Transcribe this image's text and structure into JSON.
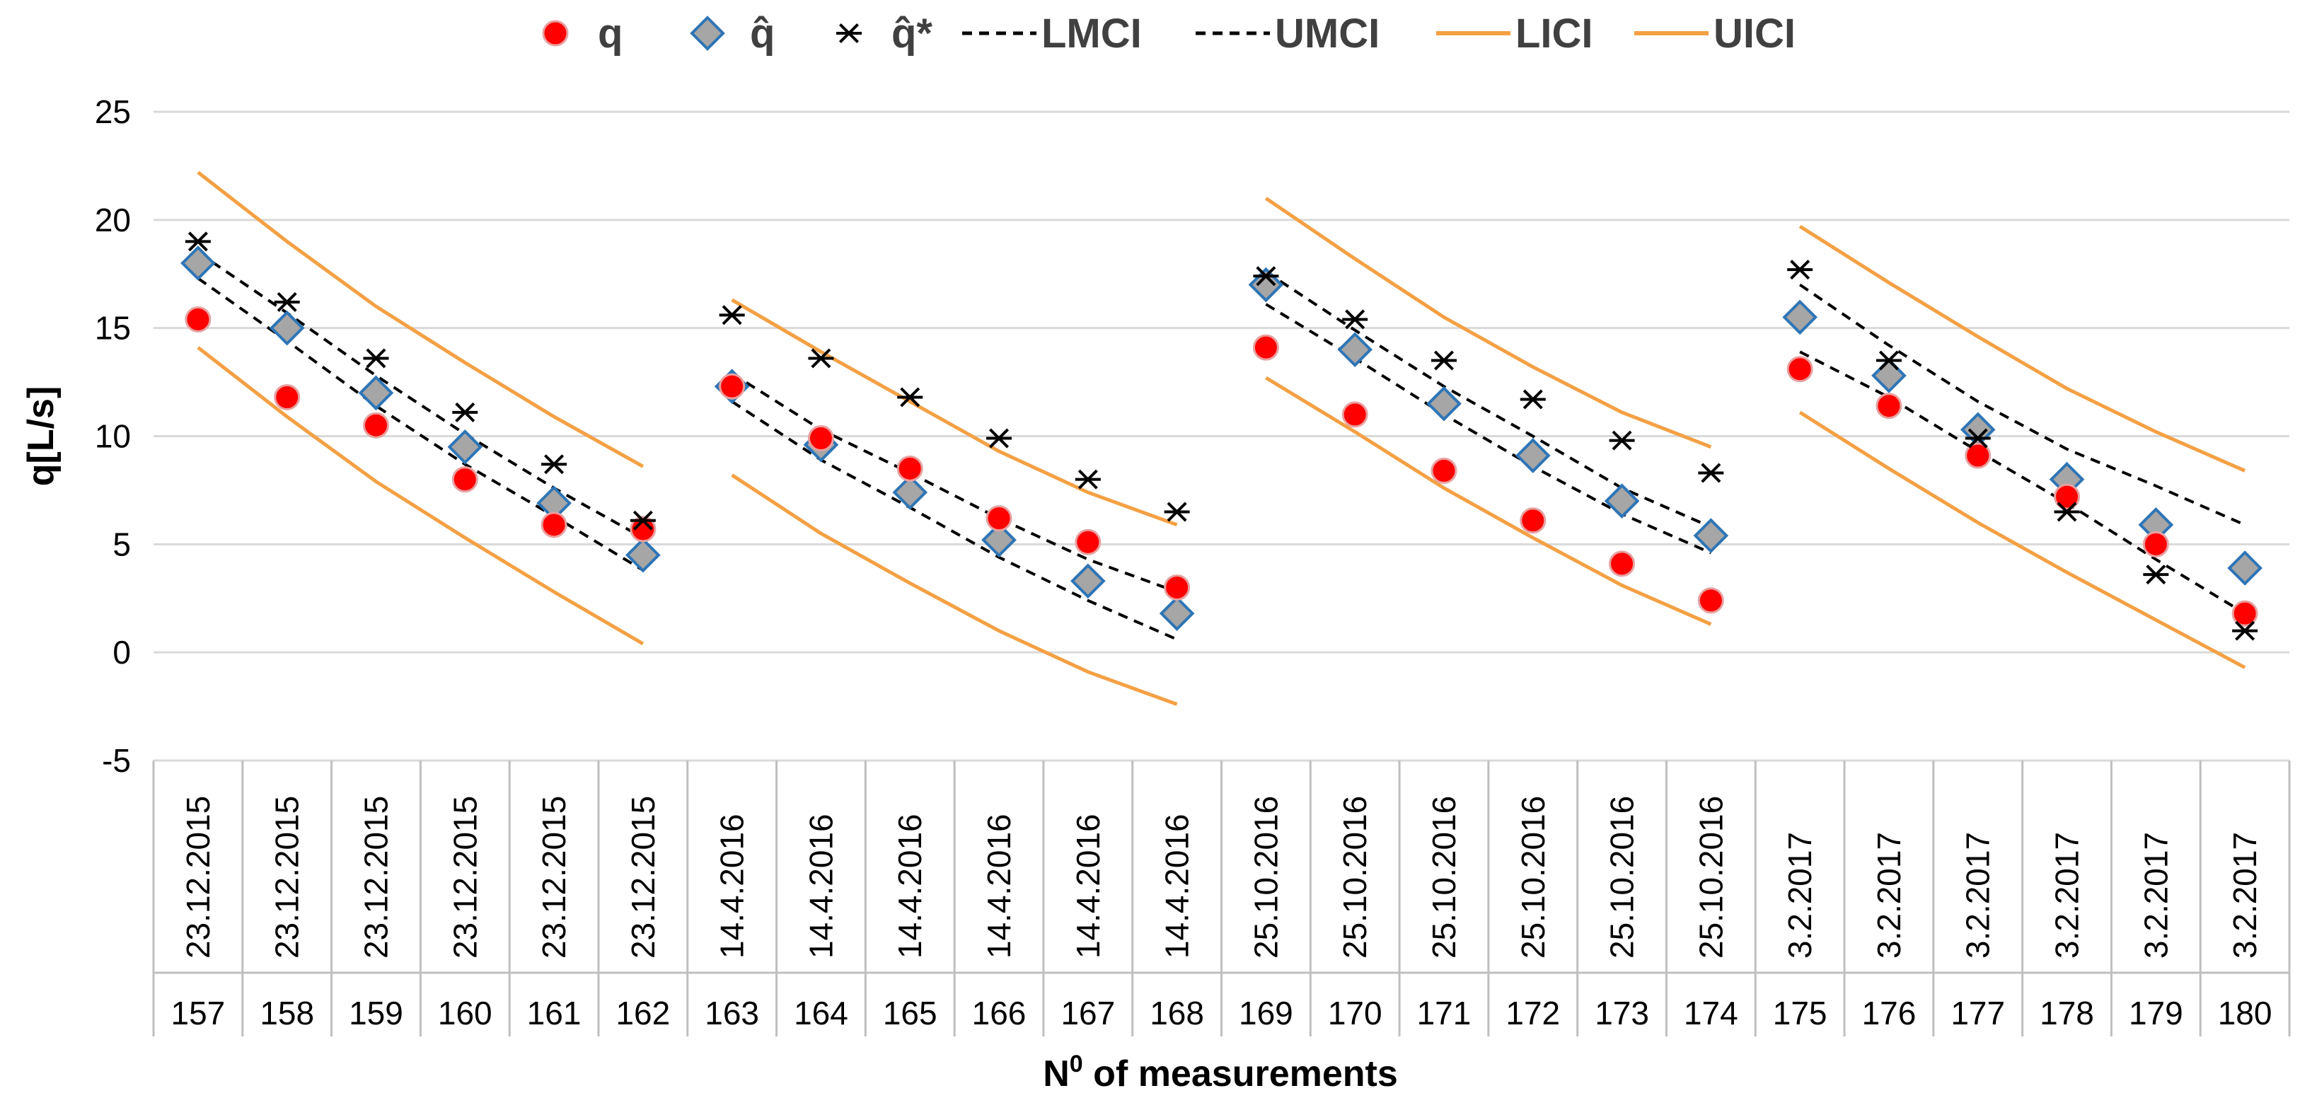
{
  "chart_data": {
    "type": "scatter",
    "ylabel": "q[L/s]",
    "xlabel_prefix": "N",
    "xlabel_sup": "0",
    "xlabel_suffix": " of measurements",
    "ylim": [
      -5,
      25
    ],
    "yticks": [
      -5,
      0,
      5,
      10,
      15,
      20,
      25
    ],
    "grid": true,
    "legend_position": "top",
    "categories": [
      "157",
      "158",
      "159",
      "160",
      "161",
      "162",
      "163",
      "164",
      "165",
      "166",
      "167",
      "168",
      "169",
      "170",
      "171",
      "172",
      "173",
      "174",
      "175",
      "176",
      "177",
      "178",
      "179",
      "180"
    ],
    "dates": [
      "23.12.2015",
      "23.12.2015",
      "23.12.2015",
      "23.12.2015",
      "23.12.2015",
      "23.12.2015",
      "14.4.2016",
      "14.4.2016",
      "14.4.2016",
      "14.4.2016",
      "14.4.2016",
      "14.4.2016",
      "25.10.2016",
      "25.10.2016",
      "25.10.2016",
      "25.10.2016",
      "25.10.2016",
      "25.10.2016",
      "3.2.2017",
      "3.2.2017",
      "3.2.2017",
      "3.2.2017",
      "3.2.2017",
      "3.2.2017"
    ],
    "groups": [
      [
        0,
        5
      ],
      [
        6,
        11
      ],
      [
        12,
        17
      ],
      [
        18,
        23
      ]
    ],
    "series": [
      {
        "name": "q",
        "marker": "circle",
        "color": "#ff0000",
        "edge": "#e8a0a0",
        "values": [
          15.4,
          11.8,
          10.5,
          8.0,
          5.9,
          5.7,
          12.3,
          9.9,
          8.5,
          6.2,
          5.1,
          3.0,
          14.1,
          11.0,
          8.4,
          6.1,
          4.1,
          2.4,
          13.1,
          11.4,
          9.1,
          7.2,
          5.0,
          1.8
        ]
      },
      {
        "name": "q̂",
        "marker": "diamond",
        "color": "#a6a6a6",
        "edge": "#2e75b6",
        "values": [
          18.0,
          15.0,
          12.0,
          9.5,
          6.9,
          4.5,
          12.3,
          9.6,
          7.4,
          5.2,
          3.3,
          1.8,
          17.0,
          14.0,
          11.5,
          9.1,
          7.0,
          5.4,
          15.5,
          12.8,
          10.3,
          8.0,
          5.9,
          3.9
        ]
      },
      {
        "name": "q̂*",
        "marker": "asterisk",
        "color": "#000000",
        "values": [
          19.0,
          16.2,
          13.6,
          11.1,
          8.7,
          6.1,
          15.6,
          13.6,
          11.8,
          9.9,
          8.0,
          6.5,
          17.4,
          15.4,
          13.5,
          11.7,
          9.8,
          8.3,
          17.7,
          13.5,
          9.9,
          6.5,
          3.6,
          1.0
        ]
      },
      {
        "name": "LMCI",
        "line": "dashed",
        "color": "#000000",
        "values": [
          17.3,
          14.4,
          11.4,
          8.7,
          6.3,
          3.8,
          11.6,
          8.9,
          6.7,
          4.4,
          2.4,
          0.6,
          16.1,
          13.6,
          11.0,
          8.6,
          6.4,
          4.6,
          13.9,
          11.8,
          9.3,
          6.9,
          4.3,
          1.8
        ]
      },
      {
        "name": "UMCI",
        "line": "dashed",
        "color": "#000000",
        "values": [
          18.5,
          15.7,
          12.8,
          10.1,
          7.6,
          5.3,
          12.9,
          10.3,
          8.3,
          6.2,
          4.3,
          2.8,
          17.6,
          14.9,
          12.3,
          10.0,
          7.6,
          5.8,
          17.0,
          14.2,
          11.6,
          9.4,
          7.7,
          5.9
        ]
      },
      {
        "name": "LICI",
        "line": "solid",
        "color": "#f4a044",
        "values": [
          14.1,
          10.9,
          7.9,
          5.3,
          2.8,
          0.4,
          8.2,
          5.5,
          3.2,
          1.0,
          -0.9,
          -2.4,
          12.7,
          10.2,
          7.6,
          5.3,
          3.1,
          1.3,
          11.1,
          8.5,
          6.0,
          3.7,
          1.5,
          -0.7
        ]
      },
      {
        "name": "UICI",
        "line": "solid",
        "color": "#f4a044",
        "values": [
          22.2,
          19.0,
          16.0,
          13.4,
          10.9,
          8.6,
          16.3,
          13.9,
          11.6,
          9.3,
          7.4,
          5.9,
          21.0,
          18.2,
          15.5,
          13.2,
          11.1,
          9.5,
          19.7,
          17.1,
          14.6,
          12.2,
          10.2,
          8.4
        ]
      }
    ]
  }
}
